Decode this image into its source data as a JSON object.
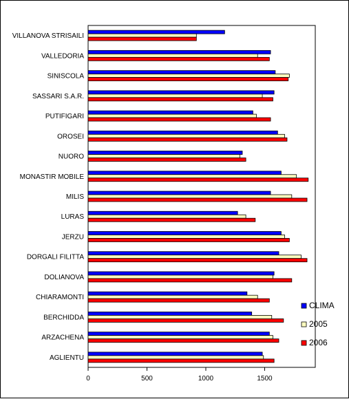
{
  "chart_data": {
    "type": "bar",
    "orientation": "horizontal",
    "title": "",
    "xlabel": "",
    "ylabel": "",
    "categories": [
      "VILLANOVA STRISAILI",
      "VALLEDORIA",
      "SINISCOLA",
      "SASSARI S.A.R.",
      "PUTIFIGARI",
      "OROSEI",
      "NUORO",
      "MONASTIR MOBILE",
      "MILIS",
      "LURAS",
      "JERZU",
      "DORGALI FILITTA",
      "DOLIANOVA",
      "CHIARAMONTI",
      "BERCHIDDA",
      "ARZACHENA",
      "AGLIENTU"
    ],
    "series": [
      {
        "name": "CLIMA",
        "color": "#0000ff",
        "values": [
          1160,
          1550,
          1590,
          1580,
          1400,
          1610,
          1310,
          1640,
          1550,
          1270,
          1640,
          1620,
          1580,
          1350,
          1390,
          1540,
          1480
        ]
      },
      {
        "name": "2005",
        "color": "#ffffc0",
        "values": [
          920,
          1440,
          1710,
          1480,
          1430,
          1670,
          1290,
          1770,
          1730,
          1340,
          1670,
          1810,
          1570,
          1440,
          1560,
          1570,
          1490
        ]
      },
      {
        "name": "2006",
        "color": "#ff0000",
        "values": [
          920,
          1540,
          1700,
          1570,
          1550,
          1690,
          1340,
          1870,
          1860,
          1420,
          1710,
          1860,
          1730,
          1540,
          1660,
          1620,
          1580
        ]
      }
    ],
    "xlim": [
      0,
      1930
    ],
    "xticks": [
      0,
      500,
      1000,
      1500
    ],
    "xtick_labels": [
      "0",
      "500",
      "1000",
      "1500"
    ],
    "grid": false,
    "legend_position": "right"
  }
}
